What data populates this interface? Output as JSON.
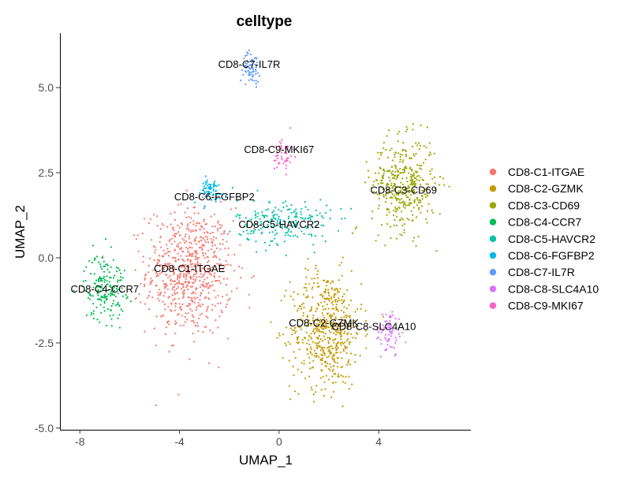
{
  "chart_data": {
    "type": "scatter",
    "title": "celltype",
    "xlabel": "UMAP_1",
    "ylabel": "UMAP_2",
    "xlim": [
      -8.8,
      7.7
    ],
    "ylim": [
      -5.05,
      6.6
    ],
    "xticks": [
      -8,
      -4,
      0,
      4
    ],
    "xtick_labels": [
      "-8",
      "-4",
      "0",
      "4"
    ],
    "yticks": [
      -5.0,
      -2.5,
      0.0,
      2.5,
      5.0
    ],
    "ytick_labels": [
      "-5.0",
      "-2.5",
      "0.0",
      "2.5",
      "5.0"
    ],
    "grid": false,
    "legend_position": "right",
    "series": [
      {
        "name": "CD8-C1-ITGAE",
        "color": "#F8766D",
        "label_at": [
          -3.6,
          -0.3
        ],
        "center": [
          -3.6,
          -0.4
        ],
        "spread": [
          1.15,
          1.25
        ],
        "n": 700
      },
      {
        "name": "CD8-C2-GZMK",
        "color": "#C49A00",
        "label_at": [
          1.8,
          -1.9
        ],
        "center": [
          1.9,
          -2.1
        ],
        "spread": [
          0.95,
          1.15
        ],
        "n": 560
      },
      {
        "name": "CD8-C3-CD69",
        "color": "#99A800",
        "label_at": [
          5.0,
          2.0
        ],
        "center": [
          5.0,
          2.15
        ],
        "spread": [
          0.85,
          0.9
        ],
        "n": 400
      },
      {
        "name": "CD8-C4-CCR7",
        "color": "#00BC56",
        "label_at": [
          -7.0,
          -0.9
        ],
        "center": [
          -7.0,
          -0.85
        ],
        "spread": [
          0.55,
          0.65
        ],
        "n": 180
      },
      {
        "name": "CD8-C5-HAVCR2",
        "color": "#00C1A7",
        "label_at": [
          0.0,
          1.0
        ],
        "center": [
          0.2,
          1.05
        ],
        "spread": [
          1.25,
          0.45
        ],
        "n": 210
      },
      {
        "name": "CD8-C6-FGFBP2",
        "color": "#00B8E7",
        "label_at": [
          -2.6,
          1.8
        ],
        "center": [
          -2.8,
          1.95
        ],
        "spread": [
          0.45,
          0.25
        ],
        "n": 70
      },
      {
        "name": "CD8-C7-IL7R",
        "color": "#619CFF",
        "label_at": [
          -1.2,
          5.7
        ],
        "center": [
          -1.1,
          5.6
        ],
        "spread": [
          0.22,
          0.3
        ],
        "n": 70
      },
      {
        "name": "CD8-C8-SLC4A10",
        "color": "#DB72FB",
        "label_at": [
          3.8,
          -2.0
        ],
        "center": [
          4.4,
          -2.2
        ],
        "spread": [
          0.35,
          0.45
        ],
        "n": 70
      },
      {
        "name": "CD8-C9-MKI67",
        "color": "#FF61C3",
        "label_at": [
          0.0,
          3.2
        ],
        "center": [
          0.2,
          3.05
        ],
        "spread": [
          0.25,
          0.35
        ],
        "n": 50
      }
    ]
  }
}
